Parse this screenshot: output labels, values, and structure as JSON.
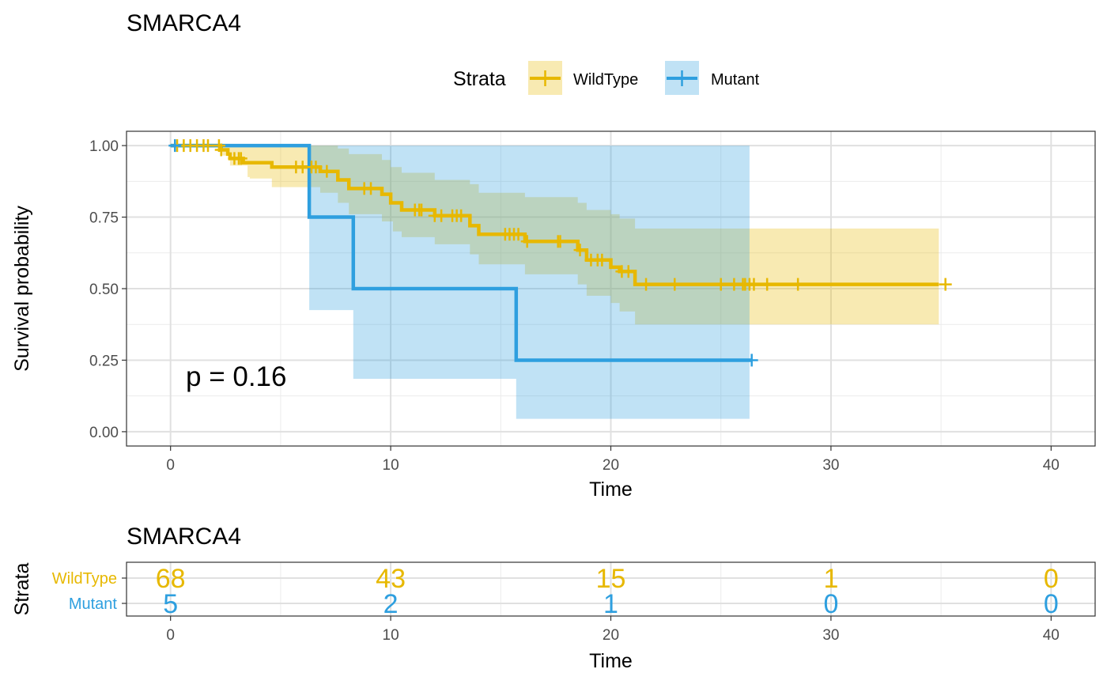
{
  "chart_data": [
    {
      "type": "line",
      "subtype": "kaplan-meier",
      "title": "SMARCA4",
      "xlabel": "Time",
      "ylabel": "Survival probability",
      "xlim": [
        -2,
        42
      ],
      "ylim": [
        -0.05,
        1.05
      ],
      "x_ticks": [
        0,
        10,
        20,
        30,
        40
      ],
      "y_ticks": [
        0,
        0.25,
        0.5,
        0.75,
        1.0
      ],
      "y_tick_labels": [
        "0.00",
        "0.25",
        "0.50",
        "0.75",
        "1.00"
      ],
      "grid": true,
      "legend": {
        "title": "Strata",
        "position": "top",
        "entries": [
          "WildType",
          "Mutant"
        ]
      },
      "annotation": "p = 0.16",
      "series": [
        {
          "name": "WildType",
          "color": "#E7B800",
          "steps": [
            [
              0,
              1.0
            ],
            [
              2.3,
              0.985
            ],
            [
              2.6,
              0.97
            ],
            [
              2.7,
              0.955
            ],
            [
              3.3,
              0.94
            ],
            [
              4.6,
              0.925
            ],
            [
              6.8,
              0.91
            ],
            [
              7.6,
              0.88
            ],
            [
              8.1,
              0.85
            ],
            [
              9.6,
              0.83
            ],
            [
              10.0,
              0.8
            ],
            [
              10.5,
              0.775
            ],
            [
              12.0,
              0.755
            ],
            [
              13.6,
              0.72
            ],
            [
              14.0,
              0.69
            ],
            [
              16.1,
              0.665
            ],
            [
              18.5,
              0.635
            ],
            [
              18.9,
              0.6
            ],
            [
              20.0,
              0.575
            ],
            [
              20.4,
              0.56
            ],
            [
              21.1,
              0.515
            ],
            [
              34.9,
              0.515
            ]
          ],
          "lower": [
            [
              0,
              1.0
            ],
            [
              2.3,
              0.965
            ],
            [
              2.7,
              0.93
            ],
            [
              3.5,
              0.89
            ],
            [
              3.6,
              0.885
            ],
            [
              4.6,
              0.855
            ],
            [
              6.8,
              0.835
            ],
            [
              7.6,
              0.8
            ],
            [
              8.1,
              0.76
            ],
            [
              9.6,
              0.735
            ],
            [
              10.1,
              0.7
            ],
            [
              10.5,
              0.68
            ],
            [
              12.0,
              0.655
            ],
            [
              13.6,
              0.62
            ],
            [
              14.0,
              0.585
            ],
            [
              16.1,
              0.55
            ],
            [
              18.5,
              0.515
            ],
            [
              18.9,
              0.475
            ],
            [
              20.0,
              0.45
            ],
            [
              20.4,
              0.42
            ],
            [
              21.1,
              0.375
            ],
            [
              34.9,
              0.375
            ]
          ],
          "upper": [
            [
              0,
              1.0
            ],
            [
              6.8,
              1.0
            ],
            [
              7.6,
              0.99
            ],
            [
              8.1,
              0.97
            ],
            [
              9.6,
              0.95
            ],
            [
              10.0,
              0.925
            ],
            [
              10.5,
              0.905
            ],
            [
              12.0,
              0.88
            ],
            [
              13.6,
              0.865
            ],
            [
              14.0,
              0.835
            ],
            [
              16.1,
              0.82
            ],
            [
              18.5,
              0.8
            ],
            [
              18.9,
              0.775
            ],
            [
              20.0,
              0.76
            ],
            [
              20.4,
              0.745
            ],
            [
              21.1,
              0.71
            ],
            [
              34.9,
              0.71
            ]
          ],
          "censor": [
            0.3,
            0.6,
            0.9,
            1.2,
            1.5,
            1.7,
            2.2,
            2.3,
            2.9,
            3.1,
            3.2,
            5.7,
            6.0,
            6.4,
            6.6,
            7.1,
            8.8,
            9.1,
            11.1,
            11.3,
            11.4,
            12.0,
            12.3,
            12.8,
            13.0,
            13.2,
            15.2,
            15.4,
            15.6,
            15.8,
            16.2,
            17.6,
            17.7,
            18.6,
            19.1,
            19.4,
            19.6,
            20.5,
            20.8,
            21.6,
            22.9,
            25.0,
            25.6,
            26.0,
            26.1,
            26.3,
            26.5,
            27.1,
            28.5,
            35.2
          ]
        },
        {
          "name": "Mutant",
          "color": "#2E9FDF",
          "steps": [
            [
              0,
              1.0
            ],
            [
              6.3,
              0.75
            ],
            [
              8.3,
              0.5
            ],
            [
              15.7,
              0.25
            ],
            [
              26.4,
              0.25
            ]
          ],
          "lower": [
            [
              0,
              1.0
            ],
            [
              6.3,
              0.425
            ],
            [
              8.3,
              0.185
            ],
            [
              15.7,
              0.045
            ],
            [
              26.3,
              0.045
            ]
          ],
          "upper": [
            [
              0,
              1.0
            ],
            [
              26.3,
              1.0
            ]
          ],
          "censor": [
            0.2,
            26.4
          ]
        }
      ]
    },
    {
      "type": "table",
      "title": "SMARCA4",
      "xlabel": "Time",
      "ylabel": "Strata",
      "xlim": [
        -2,
        42
      ],
      "x_ticks": [
        0,
        10,
        20,
        30,
        40
      ],
      "rows": [
        {
          "name": "WildType",
          "color": "#E7B800",
          "times": [
            0,
            10,
            20,
            30,
            40
          ],
          "counts": [
            "68",
            "43",
            "15",
            "1",
            "0"
          ]
        },
        {
          "name": "Mutant",
          "color": "#2E9FDF",
          "times": [
            0,
            10,
            20,
            30,
            40
          ],
          "counts": [
            "5",
            "2",
            "1",
            "0",
            "0"
          ]
        }
      ]
    }
  ]
}
